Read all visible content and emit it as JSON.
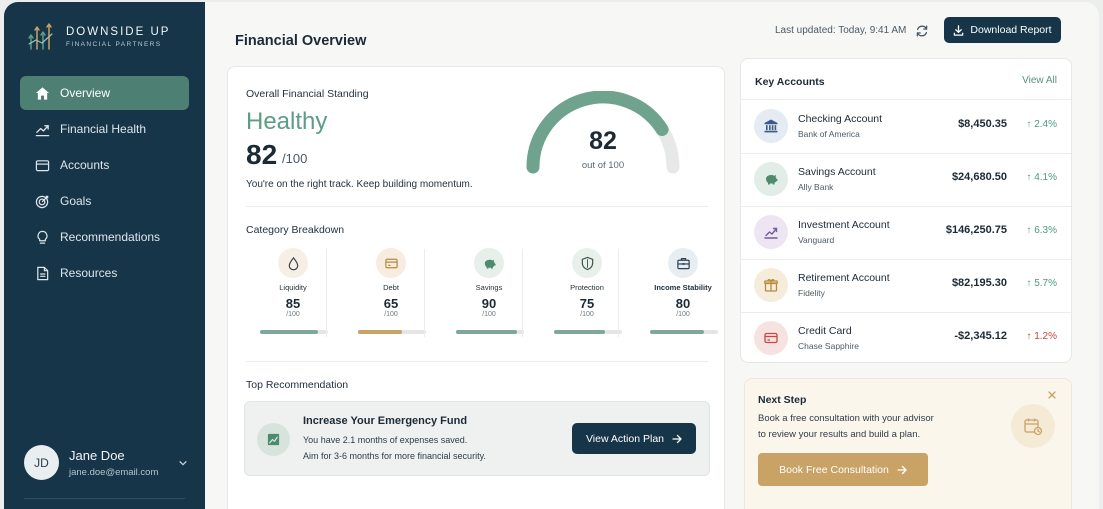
{
  "brand": {
    "name": "DOWNSIDE UP",
    "subtitle": "FINANCIAL PARTNERS",
    "logo_icon": "chart-arrows-icon"
  },
  "sidebar": {
    "items": [
      {
        "label": "Overview",
        "icon": "home-icon",
        "active": true
      },
      {
        "label": "Financial Health",
        "icon": "trend-line-icon"
      },
      {
        "label": "Accounts",
        "icon": "wallet-icon"
      },
      {
        "label": "Goals",
        "icon": "target-icon"
      },
      {
        "label": "Recommendations",
        "icon": "lightbulb-icon"
      },
      {
        "label": "Resources",
        "icon": "document-icon"
      }
    ],
    "user": {
      "initials": "JD",
      "name": "Jane Doe",
      "email": "jane.doe@email.com"
    }
  },
  "header": {
    "title": "Financial Overview",
    "last_updated": "Last updated: Today, 9:41 AM",
    "download_label": "Download Report"
  },
  "standing": {
    "title": "Overall Financial Standing",
    "status": "Healthy",
    "score": "82",
    "score_max": "/100",
    "message": "You're on the right track. Keep building momentum.",
    "gauge_value": "82",
    "gauge_caption": "out of 100",
    "gauge_fraction": 0.82
  },
  "categories": {
    "title": "Category Breakdown",
    "items": [
      {
        "label": "Liquidity",
        "score": "85",
        "max": "/100",
        "fraction": 0.85,
        "icon": "droplet-icon",
        "color": "#7fa898",
        "bg": "#f7efe3",
        "bold": false
      },
      {
        "label": "Debt",
        "score": "65",
        "max": "/100",
        "fraction": 0.65,
        "icon": "credit-card-icon",
        "color": "#c9a265",
        "bg": "#f7ece0",
        "bold": false
      },
      {
        "label": "Savings",
        "score": "90",
        "max": "/100",
        "fraction": 0.9,
        "icon": "piggy-bank-icon",
        "color": "#7fa898",
        "bg": "#e6efea",
        "bold": false
      },
      {
        "label": "Protection",
        "score": "75",
        "max": "/100",
        "fraction": 0.75,
        "icon": "shield-icon",
        "color": "#7fa898",
        "bg": "#e9f0ec",
        "bold": false
      },
      {
        "label": "Income Stability",
        "score": "80",
        "max": "/100",
        "fraction": 0.8,
        "icon": "briefcase-icon",
        "color": "#7fa898",
        "bg": "#e8edf1",
        "bold": true
      }
    ]
  },
  "recommendation": {
    "section_title": "Top Recommendation",
    "title": "Increase Your Emergency Fund",
    "line1": "You have 2.1 months of expenses saved.",
    "line2": "Aim for 3-6 months for more financial security.",
    "button": "View Action Plan",
    "icon": "chart-growth-icon"
  },
  "accounts": {
    "title": "Key Accounts",
    "view_all": "View All",
    "items": [
      {
        "name": "Checking Account",
        "institution": "Bank of America",
        "balance": "$8,450.35",
        "change": "↑ 2.4%",
        "direction": "up",
        "icon": "bank-icon",
        "icon_color": "#3a5a88",
        "bg": "#e4ebf3"
      },
      {
        "name": "Savings Account",
        "institution": "Ally Bank",
        "balance": "$24,680.50",
        "change": "↑ 4.1%",
        "direction": "up",
        "icon": "piggy-bank-icon",
        "icon_color": "#4e8a6e",
        "bg": "#e1ede6"
      },
      {
        "name": "Investment Account",
        "institution": "Vanguard",
        "balance": "$146,250.75",
        "change": "↑ 6.3%",
        "direction": "up",
        "icon": "trend-up-icon",
        "icon_color": "#7a5a9a",
        "bg": "#ede6f2"
      },
      {
        "name": "Retirement Account",
        "institution": "Fidelity",
        "balance": "$82,195.30",
        "change": "↑ 5.7%",
        "direction": "up",
        "icon": "gift-box-icon",
        "icon_color": "#b98a3a",
        "bg": "#f6ecdc"
      },
      {
        "name": "Credit Card",
        "institution": "Chase Sapphire",
        "balance": "-$2,345.12",
        "change": "↑ 1.2%",
        "direction": "down",
        "icon": "credit-card-icon",
        "icon_color": "#c24a44",
        "bg": "#f6e2e0"
      }
    ]
  },
  "next_step": {
    "title": "Next Step",
    "line1": "Book a free consultation with your advisor",
    "line2": "to review your results and build a plan.",
    "button": "Book Free Consultation",
    "icon": "calendar-clock-icon"
  },
  "colors": {
    "sidebar_bg": "#173549",
    "accent_green": "#5d9c85",
    "accent_gold": "#c9a265",
    "positive": "#4e9a7a",
    "negative": "#c2473e"
  }
}
